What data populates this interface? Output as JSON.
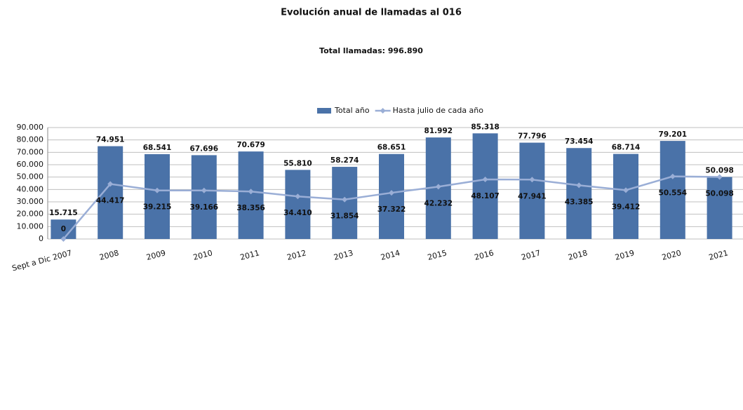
{
  "chart_data": {
    "type": "bar",
    "title": "Evolución anual de llamadas al 016",
    "subtitle": "Total llamadas: 996.890",
    "categories": [
      "Sept a Dic 2007",
      "2008",
      "2009",
      "2010",
      "2011",
      "2012",
      "2013",
      "2014",
      "2015",
      "2016",
      "2017",
      "2018",
      "2019",
      "2020",
      "2021"
    ],
    "series": [
      {
        "name": "Total año",
        "type": "bar",
        "color": "#4a72a8",
        "values": [
          15715,
          74951,
          68541,
          67696,
          70679,
          55810,
          58274,
          68651,
          81992,
          85318,
          77796,
          73454,
          68714,
          79201,
          50098
        ],
        "value_labels": [
          "15.715",
          "74.951",
          "68.541",
          "67.696",
          "70.679",
          "55.810",
          "58.274",
          "68.651",
          "81.992",
          "85.318",
          "77.796",
          "73.454",
          "68.714",
          "79.201",
          "50.098"
        ]
      },
      {
        "name": "Hasta julio de cada año",
        "type": "line",
        "color": "#9aaed6",
        "values": [
          0,
          44417,
          39215,
          39166,
          38356,
          34410,
          31854,
          37322,
          42232,
          48107,
          47941,
          43385,
          39412,
          50554,
          50098
        ],
        "value_labels": [
          "0",
          "44.417",
          "39.215",
          "39.166",
          "38.356",
          "34.410",
          "31.854",
          "37.322",
          "42.232",
          "48.107",
          "47.941",
          "43.385",
          "39.412",
          "50.554",
          "50.098"
        ]
      }
    ],
    "ylim": [
      0,
      90000
    ],
    "yticks": [
      0,
      {
        "value": 10000,
        "label": "10.000"
      },
      {
        "value": 20000,
        "label": "20.000"
      },
      {
        "value": 30000,
        "label": "30.000"
      },
      {
        "value": 40000,
        "label": "40.000"
      },
      {
        "value": 50000,
        "label": "50.000"
      },
      {
        "value": 60000,
        "label": "60.000"
      },
      {
        "value": 70000,
        "label": "70.000"
      },
      {
        "value": 80000,
        "label": "80.000"
      },
      {
        "value": 90000,
        "label": "90.000"
      }
    ],
    "grid": true,
    "legend": "top"
  }
}
